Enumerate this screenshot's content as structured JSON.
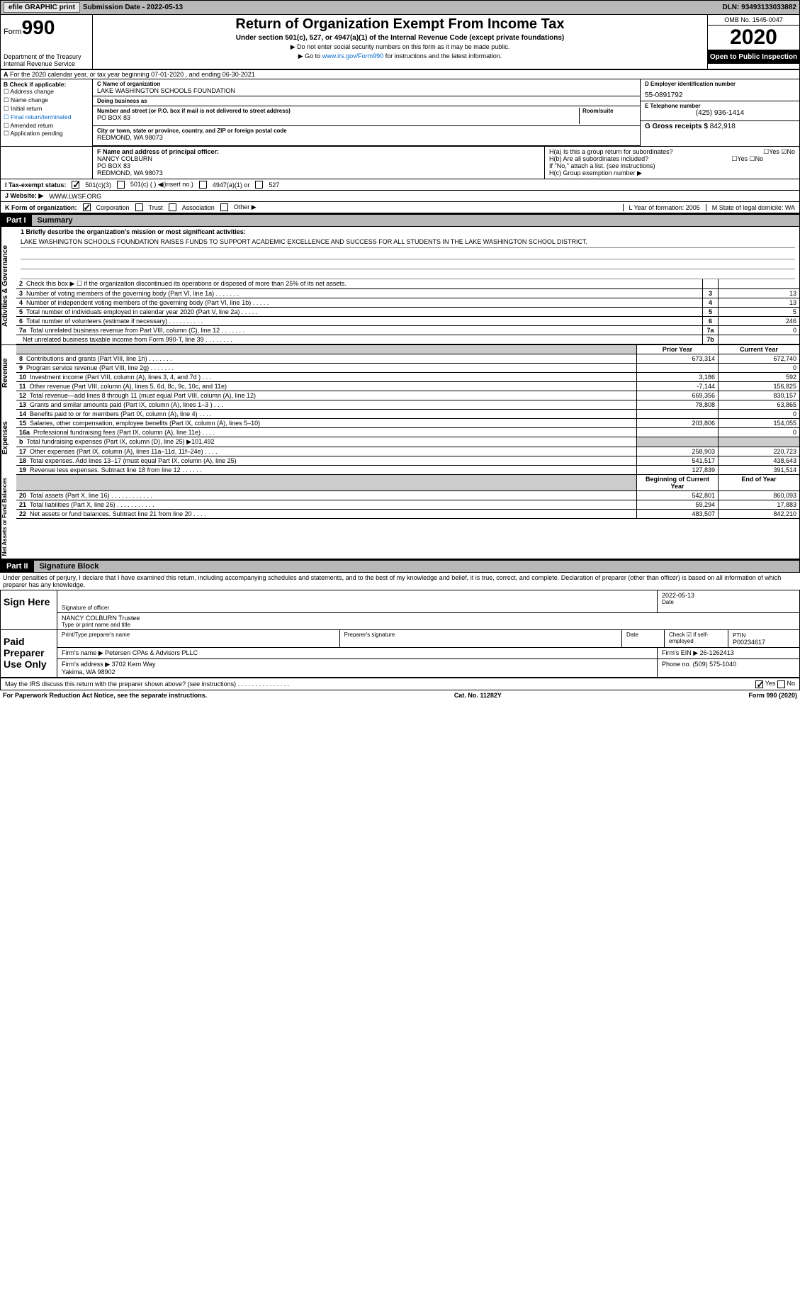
{
  "topbar": {
    "efile": "efile GRAPHIC print",
    "submission": "Submission Date - 2022-05-13",
    "dln": "DLN: 93493133033882"
  },
  "header": {
    "form": "990",
    "form_prefix": "Form",
    "title": "Return of Organization Exempt From Income Tax",
    "subtitle": "Under section 501(c), 527, or 4947(a)(1) of the Internal Revenue Code (except private foundations)",
    "ssn": "▶ Do not enter social security numbers on this form as it may be made public.",
    "goto": "▶ Go to www.irs.gov/Form990 for instructions and the latest information.",
    "goto_link": "www.irs.gov/Form990",
    "dept": "Department of the Treasury\nInternal Revenue Service",
    "omb": "OMB No. 1545-0047",
    "year": "2020",
    "open": "Open to Public Inspection"
  },
  "line_a": "For the 2020 calendar year, or tax year beginning 07-01-2020   , and ending 06-30-2021",
  "box_b": {
    "header": "B Check if applicable:",
    "items": [
      "Address change",
      "Name change",
      "Initial return",
      "Final return/terminated",
      "Amended return",
      "Application pending"
    ]
  },
  "box_c": {
    "label": "C Name of organization",
    "name": "LAKE WASHINGTON SCHOOLS FOUNDATION",
    "dba_label": "Doing business as",
    "addr_label": "Number and street (or P.O. box if mail is not delivered to street address)",
    "room_label": "Room/suite",
    "addr": "PO BOX 83",
    "city_label": "City or town, state or province, country, and ZIP or foreign postal code",
    "city": "REDMOND, WA  98073"
  },
  "box_d": {
    "label": "D Employer identification number",
    "ein": "55-0891792",
    "phone_label": "E Telephone number",
    "phone": "(425) 936-1414",
    "gross_label": "G Gross receipts $",
    "gross": "842,918"
  },
  "box_f": {
    "label": "F  Name and address of principal officer:",
    "name": "NANCY COLBURN",
    "addr1": "PO BOX 83",
    "addr2": "REDMOND, WA  98073"
  },
  "box_h": {
    "a": "H(a)  Is this a group return for subordinates?",
    "b": "H(b)  Are all subordinates included?",
    "note": "If \"No,\" attach a list. (see instructions)",
    "c": "H(c)  Group exemption number ▶"
  },
  "row_i": {
    "label": "I    Tax-exempt status:",
    "opts": [
      "501(c)(3)",
      "501(c) (  ) ◀(insert no.)",
      "4947(a)(1) or",
      "527"
    ]
  },
  "row_j": {
    "label": "J    Website: ▶",
    "url": "WWW.LWSF.ORG"
  },
  "row_k": {
    "label": "K Form of organization:",
    "opts": [
      "Corporation",
      "Trust",
      "Association",
      "Other ▶"
    ],
    "l": "L Year of formation: 2005",
    "m": "M State of legal domicile: WA"
  },
  "part1": {
    "num": "Part I",
    "title": "Summary"
  },
  "mission": {
    "q": "1   Briefly describe the organization's mission or most significant activities:",
    "text": "LAKE WASHINGTON SCHOOLS FOUNDATION RAISES FUNDS TO SUPPORT ACADEMIC EXCELLENCE AND SUCCESS FOR ALL STUDENTS IN THE LAKE WASHINGTON SCHOOL DISTRICT."
  },
  "governance": [
    {
      "n": "2",
      "desc": "Check this box ▶ ☐  if the organization discontinued its operations or disposed of more than 25% of its net assets.",
      "num": "",
      "val": ""
    },
    {
      "n": "3",
      "desc": "Number of voting members of the governing body (Part VI, line 1a)   .    .    .    .    .    .    .",
      "num": "3",
      "val": "13"
    },
    {
      "n": "4",
      "desc": "Number of independent voting members of the governing body (Part VI, line 1b)   .    .    .    .    .",
      "num": "4",
      "val": "13"
    },
    {
      "n": "5",
      "desc": "Total number of individuals employed in calendar year 2020 (Part V, line 2a)   .    .    .    .    .",
      "num": "5",
      "val": "5"
    },
    {
      "n": "6",
      "desc": "Total number of volunteers (estimate if necessary)   .    .    .    .    .    .    .    .    .    .",
      "num": "6",
      "val": "246"
    },
    {
      "n": "7a",
      "desc": "Total unrelated business revenue from Part VIII, column (C), line 12   .    .    .    .    .    .    .",
      "num": "7a",
      "val": "0"
    },
    {
      "n": "",
      "desc": "Net unrelated business taxable income from Form 990-T, line 39   .    .    .    .    .    .    .    .",
      "num": "7b",
      "val": ""
    }
  ],
  "revenue_hdr": {
    "prior": "Prior Year",
    "curr": "Current Year"
  },
  "revenue": [
    {
      "n": "8",
      "desc": "Contributions and grants (Part VIII, line 1h)   .    .    .    .    .    .    .",
      "prior": "673,314",
      "curr": "672,740"
    },
    {
      "n": "9",
      "desc": "Program service revenue (Part VIII, line 2g)   .    .    .    .    .    .    .",
      "prior": "",
      "curr": "0"
    },
    {
      "n": "10",
      "desc": "Investment income (Part VIII, column (A), lines 3, 4, and 7d )   .    .    .",
      "prior": "3,186",
      "curr": "592"
    },
    {
      "n": "11",
      "desc": "Other revenue (Part VIII, column (A), lines 5, 6d, 8c, 9c, 10c, and 11e)",
      "prior": "-7,144",
      "curr": "156,825"
    },
    {
      "n": "12",
      "desc": "Total revenue—add lines 8 through 11 (must equal Part VIII, column (A), line 12)",
      "prior": "669,356",
      "curr": "830,157"
    }
  ],
  "expenses": [
    {
      "n": "13",
      "desc": "Grants and similar amounts paid (Part IX, column (A), lines 1–3 )   .    .    .",
      "prior": "78,808",
      "curr": "63,865"
    },
    {
      "n": "14",
      "desc": "Benefits paid to or for members (Part IX, column (A), line 4)   .    .    .    .",
      "prior": "",
      "curr": "0"
    },
    {
      "n": "15",
      "desc": "Salaries, other compensation, employee benefits (Part IX, column (A), lines 5–10)",
      "prior": "203,806",
      "curr": "154,055"
    },
    {
      "n": "16a",
      "desc": "Professional fundraising fees (Part IX, column (A), line 11e)   .    .    .    .",
      "prior": "",
      "curr": "0"
    },
    {
      "n": "b",
      "desc": "Total fundraising expenses (Part IX, column (D), line 25) ▶101,492",
      "prior": "grey",
      "curr": "grey"
    },
    {
      "n": "17",
      "desc": "Other expenses (Part IX, column (A), lines 11a–11d, 11f–24e)   .    .    .    .",
      "prior": "258,903",
      "curr": "220,723"
    },
    {
      "n": "18",
      "desc": "Total expenses. Add lines 13–17 (must equal Part IX, column (A), line 25)",
      "prior": "541,517",
      "curr": "438,643"
    },
    {
      "n": "19",
      "desc": "Revenue less expenses. Subtract line 18 from line 12   .    .    .    .    .    .",
      "prior": "127,839",
      "curr": "391,514"
    }
  ],
  "netassets_hdr": {
    "prior": "Beginning of Current Year",
    "curr": "End of Year"
  },
  "netassets": [
    {
      "n": "20",
      "desc": "Total assets (Part X, line 16)   .    .    .    .    .    .    .    .    .    .    .    .",
      "prior": "542,801",
      "curr": "860,093"
    },
    {
      "n": "21",
      "desc": "Total liabilities (Part X, line 26)   .    .    .    .    .    .    .    .    .    .    .",
      "prior": "59,294",
      "curr": "17,883"
    },
    {
      "n": "22",
      "desc": "Net assets or fund balances. Subtract line 21 from line 20   .    .    .    .",
      "prior": "483,507",
      "curr": "842,210"
    }
  ],
  "part2": {
    "num": "Part II",
    "title": "Signature Block"
  },
  "penalties": "Under penalties of perjury, I declare that I have examined this return, including accompanying schedules and statements, and to the best of my knowledge and belief, it is true, correct, and complete. Declaration of preparer (other than officer) is based on all information of which preparer has any knowledge.",
  "sign": {
    "here": "Sign Here",
    "date": "2022-05-13",
    "sig_label": "Signature of officer",
    "date_label": "Date",
    "name": "NANCY COLBURN  Trustee",
    "name_label": "Type or print name and title"
  },
  "preparer": {
    "label": "Paid Preparer Use Only",
    "cols": [
      "Print/Type preparer's name",
      "Preparer's signature",
      "Date"
    ],
    "check": "Check ☑ if self-employed",
    "ptin_label": "PTIN",
    "ptin": "P00234617",
    "firm_label": "Firm's name   ▶",
    "firm": "Petersen CPAs & Advisors PLLC",
    "ein_label": "Firm's EIN ▶",
    "ein": "26-1262413",
    "addr_label": "Firm's address ▶",
    "addr": "3702 Kern Way\nYakima, WA  98902",
    "phone_label": "Phone no.",
    "phone": "(509) 575-1040"
  },
  "discuss": "May the IRS discuss this return with the preparer shown above? (see instructions)   .    .    .    .    .    .    .    .    .    .    .    .    .    .    .",
  "footer": {
    "left": "For Paperwork Reduction Act Notice, see the separate instructions.",
    "mid": "Cat. No. 11282Y",
    "right": "Form 990 (2020)"
  },
  "colors": {
    "bar_grey": "#b8b8b8",
    "cell_grey": "#cccccc",
    "link": "#0066cc"
  }
}
